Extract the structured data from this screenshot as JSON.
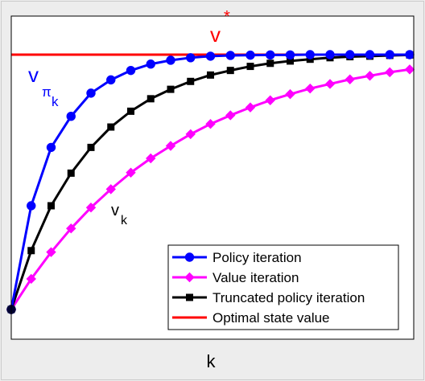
{
  "chart_data": {
    "type": "line",
    "title": "",
    "xlabel": "k",
    "ylabel": "",
    "x": [
      0,
      1,
      2,
      3,
      4,
      5,
      6,
      7,
      8,
      9,
      10,
      11,
      12,
      13,
      14,
      15,
      16,
      17,
      18,
      19,
      20
    ],
    "ylim": [
      0,
      1.1
    ],
    "grid": false,
    "legend_position": "bottom-right",
    "series": [
      {
        "name": "Policy iteration",
        "color": "#0000ff",
        "marker": "circle",
        "values": [
          0.0,
          0.407,
          0.636,
          0.758,
          0.849,
          0.901,
          0.938,
          0.963,
          0.978,
          0.988,
          0.994,
          0.997,
          0.998,
          0.999,
          0.999,
          1.0,
          1.0,
          1.0,
          1.0,
          1.0,
          1.0
        ]
      },
      {
        "name": "Value iteration",
        "color": "#ff00ff",
        "marker": "diamond",
        "values": [
          0.0,
          0.12,
          0.225,
          0.318,
          0.4,
          0.472,
          0.537,
          0.593,
          0.642,
          0.688,
          0.728,
          0.762,
          0.793,
          0.821,
          0.845,
          0.867,
          0.885,
          0.903,
          0.917,
          0.931,
          0.942
        ]
      },
      {
        "name": "Truncated policy iteration",
        "color": "#000000",
        "marker": "square",
        "values": [
          0.0,
          0.231,
          0.407,
          0.535,
          0.636,
          0.716,
          0.778,
          0.827,
          0.864,
          0.895,
          0.92,
          0.938,
          0.954,
          0.966,
          0.975,
          0.982,
          0.988,
          0.992,
          0.994,
          0.997,
          0.999
        ]
      },
      {
        "name": "Optimal state value",
        "color": "#ff0000",
        "marker": "none",
        "values": [
          1.0,
          1.0,
          1.0,
          1.0,
          1.0,
          1.0,
          1.0,
          1.0,
          1.0,
          1.0,
          1.0,
          1.0,
          1.0,
          1.0,
          1.0,
          1.0,
          1.0,
          1.0,
          1.0,
          1.0,
          1.0
        ]
      }
    ],
    "annotations": [
      {
        "text": "v",
        "superscript": "*",
        "color": "#ff0000"
      },
      {
        "text": "v",
        "subscript": "π",
        "subsubscript": "k",
        "color": "#0000ff"
      },
      {
        "text": "v",
        "subscript": "k",
        "color": "#000000"
      }
    ]
  }
}
